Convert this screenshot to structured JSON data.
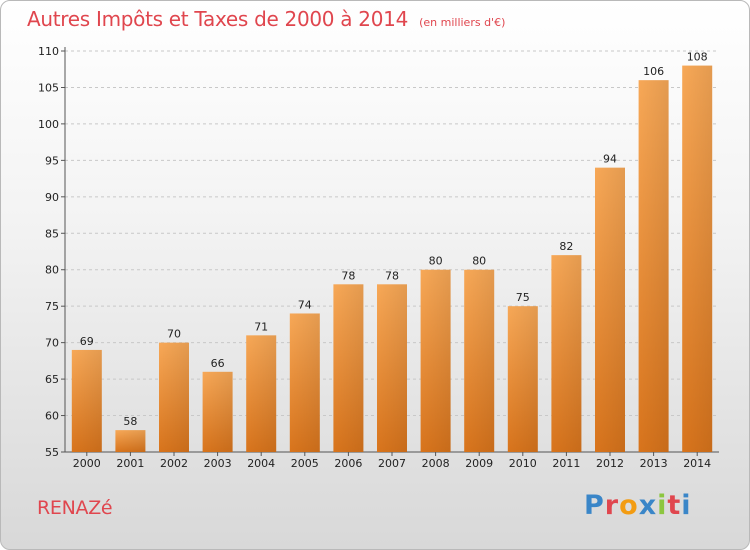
{
  "chart_data": {
    "type": "bar",
    "title": "Autres Impôts et Taxes de 2000 à 2014",
    "unit_note": "(en milliers d'€)",
    "xlabel": "",
    "ylabel": "",
    "categories": [
      "2000",
      "2001",
      "2002",
      "2003",
      "2004",
      "2005",
      "2006",
      "2007",
      "2008",
      "2009",
      "2010",
      "2011",
      "2012",
      "2013",
      "2014"
    ],
    "values": [
      69,
      58,
      70,
      66,
      71,
      74,
      78,
      78,
      80,
      80,
      75,
      82,
      94,
      106,
      108
    ],
    "ylim": [
      55,
      110
    ],
    "yticks": [
      55,
      60,
      65,
      70,
      75,
      80,
      85,
      90,
      95,
      100,
      105,
      110
    ],
    "grid": "horizontal dashed",
    "bar_color": "#f0913a"
  },
  "footer": {
    "place": "RENAZé",
    "brand": "Proxiti",
    "brand_colors": [
      "#3a86c8",
      "#e0464e",
      "#f39c12",
      "#3a86c8",
      "#8cc63f",
      "#e0464e",
      "#3a86c8"
    ]
  }
}
